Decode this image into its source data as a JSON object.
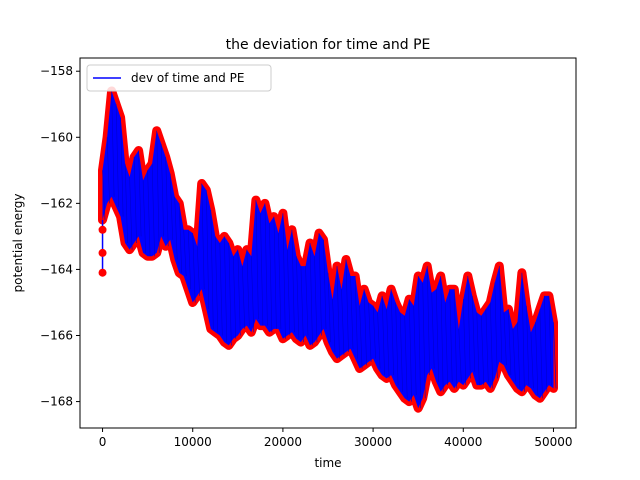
{
  "chart_data": {
    "type": "line",
    "title": "the deviation for time and PE",
    "xlabel": "time",
    "ylabel": "potential energy",
    "xlim": [
      -2500,
      52500
    ],
    "ylim": [
      -168.8,
      -157.6
    ],
    "xticks": [
      0,
      10000,
      20000,
      30000,
      40000,
      50000
    ],
    "xtick_labels": [
      "0",
      "10000",
      "20000",
      "30000",
      "40000",
      "50000"
    ],
    "yticks": [
      -168,
      -166,
      -164,
      -162,
      -160,
      -158
    ],
    "ytick_labels": [
      "−168",
      "−166",
      "−164",
      "−162",
      "−160",
      "−158"
    ],
    "grid": false,
    "legend": {
      "position": "upper left",
      "entries": [
        "dev of time and PE"
      ]
    },
    "series": [
      {
        "name": "dev of time and PE",
        "line_color": "#0000ff",
        "marker_color": "#ff0000",
        "x": [
          0,
          500,
          1000,
          1500,
          2000,
          2500,
          3000,
          3500,
          4000,
          4500,
          5000,
          5500,
          6000,
          6500,
          7000,
          7500,
          8000,
          8500,
          9000,
          9500,
          10000,
          10500,
          11000,
          11500,
          12000,
          12500,
          13000,
          13500,
          14000,
          14500,
          15000,
          15500,
          16000,
          16500,
          17000,
          17500,
          18000,
          18500,
          19000,
          19500,
          20000,
          20500,
          21000,
          21500,
          22000,
          22500,
          23000,
          23500,
          24000,
          24500,
          25000,
          25500,
          26000,
          26500,
          27000,
          27500,
          28000,
          28500,
          29000,
          29500,
          30000,
          30500,
          31000,
          31500,
          32000,
          32500,
          33000,
          33500,
          34000,
          34500,
          35000,
          35500,
          36000,
          36500,
          37000,
          37500,
          38000,
          38500,
          39000,
          39500,
          40000,
          40500,
          41000,
          41500,
          42000,
          42500,
          43000,
          43500,
          44000,
          44500,
          45000,
          45500,
          46000,
          46500,
          47000,
          47500,
          48000,
          48500,
          49000,
          49500,
          50000
        ],
        "y_upper": [
          -161.0,
          -160.0,
          -158.6,
          -159.0,
          -159.4,
          -160.8,
          -161.2,
          -160.6,
          -160.4,
          -161.3,
          -161.0,
          -160.8,
          -159.8,
          -160.2,
          -160.6,
          -161.1,
          -161.8,
          -162.0,
          -162.8,
          -162.8,
          -162.9,
          -163.3,
          -161.4,
          -161.6,
          -162.2,
          -163.0,
          -163.2,
          -163.0,
          -163.2,
          -163.6,
          -163.4,
          -163.9,
          -163.4,
          -163.6,
          -161.9,
          -162.3,
          -162.0,
          -162.6,
          -162.4,
          -162.9,
          -162.3,
          -163.4,
          -162.8,
          -163.6,
          -163.9,
          -163.9,
          -163.2,
          -163.6,
          -162.9,
          -163.1,
          -164.1,
          -164.9,
          -163.9,
          -164.6,
          -163.7,
          -164.2,
          -164.2,
          -165.1,
          -164.6,
          -165.0,
          -165.1,
          -165.3,
          -164.8,
          -165.2,
          -164.6,
          -165.0,
          -165.3,
          -165.4,
          -164.9,
          -165.1,
          -164.2,
          -164.4,
          -163.9,
          -164.7,
          -164.6,
          -164.2,
          -165.0,
          -164.6,
          -164.6,
          -165.8,
          -164.9,
          -164.2,
          -164.8,
          -165.3,
          -165.4,
          -165.2,
          -165.0,
          -164.4,
          -163.9,
          -165.3,
          -165.2,
          -165.8,
          -165.6,
          -164.1,
          -165.1,
          -165.9,
          -165.6,
          -165.2,
          -164.8,
          -164.8,
          -165.6
        ],
        "y_lower": [
          -162.5,
          -162.0,
          -161.8,
          -162.1,
          -162.4,
          -163.2,
          -163.4,
          -163.2,
          -163.0,
          -163.5,
          -163.6,
          -163.6,
          -163.5,
          -163.0,
          -163.3,
          -163.1,
          -163.7,
          -164.1,
          -164.2,
          -164.6,
          -165.0,
          -164.8,
          -164.6,
          -165.2,
          -165.8,
          -165.9,
          -166.0,
          -166.2,
          -166.3,
          -166.1,
          -166.0,
          -165.8,
          -165.7,
          -165.9,
          -165.5,
          -165.7,
          -165.7,
          -165.9,
          -165.8,
          -165.8,
          -166.1,
          -166.0,
          -165.9,
          -166.1,
          -166.2,
          -166.0,
          -166.3,
          -166.2,
          -166.0,
          -165.8,
          -166.2,
          -166.5,
          -166.7,
          -166.6,
          -166.5,
          -166.4,
          -166.7,
          -167.0,
          -166.9,
          -166.8,
          -166.7,
          -167.0,
          -167.2,
          -167.3,
          -167.2,
          -167.5,
          -167.7,
          -167.9,
          -168.0,
          -167.8,
          -168.2,
          -167.9,
          -167.2,
          -167.0,
          -167.4,
          -167.7,
          -167.5,
          -167.4,
          -167.6,
          -167.4,
          -167.5,
          -167.3,
          -167.1,
          -167.5,
          -167.5,
          -167.4,
          -167.6,
          -167.3,
          -166.8,
          -166.9,
          -167.2,
          -167.4,
          -167.6,
          -167.7,
          -167.5,
          -167.6,
          -167.8,
          -167.9,
          -167.7,
          -167.5,
          -167.6
        ],
        "initial_points": [
          {
            "x": 0,
            "y": -164.1
          },
          {
            "x": 0,
            "y": -163.5
          },
          {
            "x": 0,
            "y": -162.8
          }
        ]
      }
    ]
  }
}
